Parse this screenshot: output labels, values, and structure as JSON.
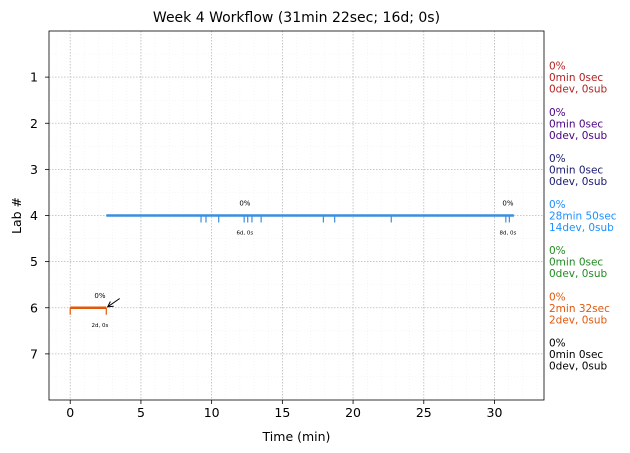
{
  "chart_data": {
    "type": "timeline",
    "title": "Week 4 Workflow (31min 22sec; 16d; 0s)",
    "xlabel": "Time (min)",
    "ylabel": "Lab #",
    "xlim": [
      -1.5,
      33.5
    ],
    "ylim": [
      8.0,
      0.0
    ],
    "x_ticks": [
      0,
      5,
      10,
      15,
      20,
      25,
      30
    ],
    "y_ticks": [
      1,
      2,
      3,
      4,
      5,
      6,
      7
    ],
    "grid": true,
    "labs": [
      {
        "lab": 1,
        "color": "#b22222",
        "pct": "0%",
        "duration": "0min 0sec",
        "devsub": "0dev, 0sub"
      },
      {
        "lab": 2,
        "color": "#4b0082",
        "pct": "0%",
        "duration": "0min 0sec",
        "devsub": "0dev, 0sub"
      },
      {
        "lab": 3,
        "color": "#191970",
        "pct": "0%",
        "duration": "0min 0sec",
        "devsub": "0dev, 0sub"
      },
      {
        "lab": 4,
        "color": "#1e90ff",
        "pct": "0%",
        "duration": "28min 50sec",
        "devsub": "14dev, 0sub"
      },
      {
        "lab": 5,
        "color": "#228b22",
        "pct": "0%",
        "duration": "0min 0sec",
        "devsub": "0dev, 0sub"
      },
      {
        "lab": 6,
        "color": "#e2580b",
        "pct": "0%",
        "duration": "2min 32sec",
        "devsub": "2dev, 0sub"
      },
      {
        "lab": 7,
        "color": "#000000",
        "pct": "0%",
        "duration": "0min 0sec",
        "devsub": "0dev, 0sub"
      }
    ],
    "segments": [
      {
        "lab": 6,
        "color": "#e2580b",
        "start": 0.0,
        "end": 2.55,
        "tick_marks": [
          0.0,
          2.55
        ]
      },
      {
        "lab": 4,
        "color": "#3a8ee0",
        "start": 2.55,
        "end": 31.37,
        "tick_marks": [
          9.25,
          9.6,
          10.5,
          12.3,
          12.55,
          12.85,
          13.5,
          17.9,
          18.7,
          22.7,
          30.8,
          31.05
        ]
      }
    ],
    "annotations": [
      {
        "lab": 4,
        "x": 12.35,
        "pct": "0%",
        "sub": "6d, 0s"
      },
      {
        "lab": 4,
        "x": 30.95,
        "pct": "0%",
        "sub": "8d, 0s"
      },
      {
        "lab": 6,
        "x": 2.1,
        "pct": "0%",
        "sub": "2d, 0s"
      }
    ],
    "transitions": [
      {
        "from_x": 3.5,
        "from_y": 5.8,
        "to_x": 2.65,
        "to_y": 5.98
      }
    ]
  }
}
